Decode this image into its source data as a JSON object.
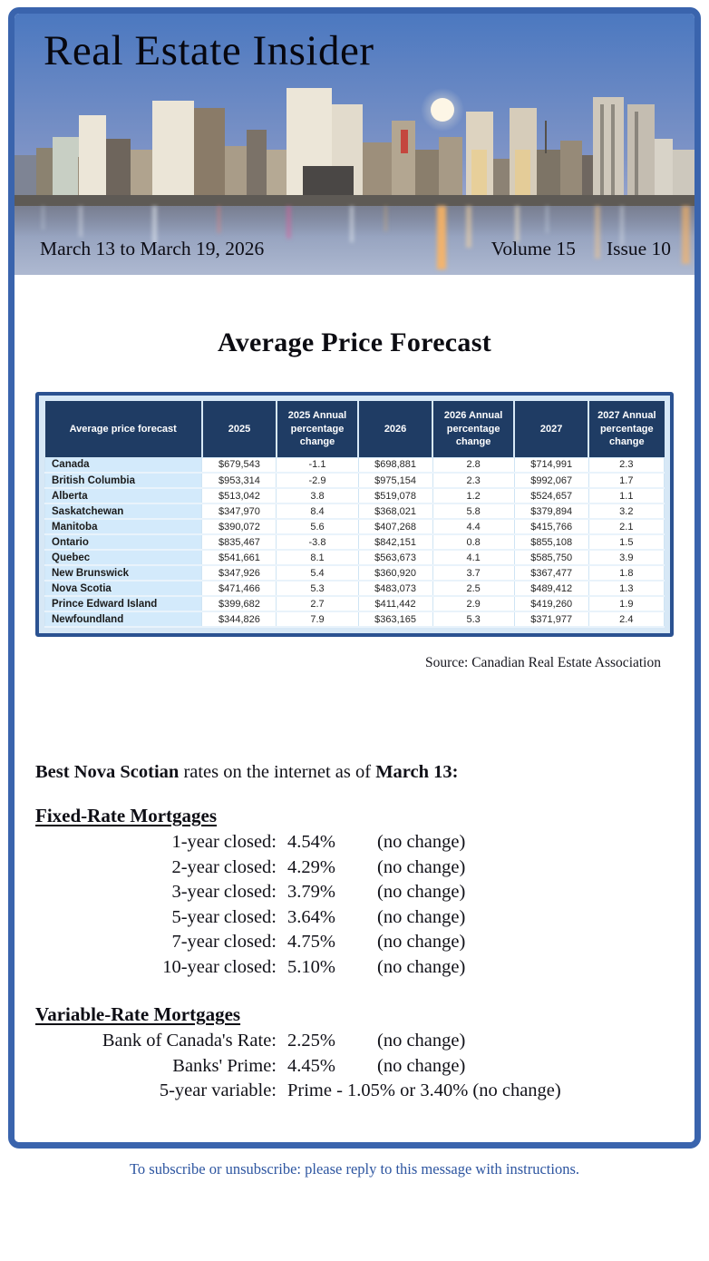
{
  "page": {
    "title": "Real Estate Insider",
    "date_range": "March 13 to March 19, 2026",
    "volume": "Volume 15",
    "issue": "Issue 10",
    "footer": "To subscribe or unsubscribe: please reply to this message with instructions."
  },
  "forecast": {
    "heading": "Average Price Forecast",
    "source": "Source: Canadian Real Estate Association",
    "table": {
      "columns": [
        "Average price forecast",
        "2025",
        "2025 Annual percentage change",
        "2026",
        "2026 Annual percentage change",
        "2027",
        "2027 Annual percentage change"
      ],
      "rows": [
        [
          "Canada",
          "$679,543",
          "-1.1",
          "$698,881",
          "2.8",
          "$714,991",
          "2.3"
        ],
        [
          "British Columbia",
          "$953,314",
          "-2.9",
          "$975,154",
          "2.3",
          "$992,067",
          "1.7"
        ],
        [
          "Alberta",
          "$513,042",
          "3.8",
          "$519,078",
          "1.2",
          "$524,657",
          "1.1"
        ],
        [
          "Saskatchewan",
          "$347,970",
          "8.4",
          "$368,021",
          "5.8",
          "$379,894",
          "3.2"
        ],
        [
          "Manitoba",
          "$390,072",
          "5.6",
          "$407,268",
          "4.4",
          "$415,766",
          "2.1"
        ],
        [
          "Ontario",
          "$835,467",
          "-3.8",
          "$842,151",
          "0.8",
          "$855,108",
          "1.5"
        ],
        [
          "Quebec",
          "$541,661",
          "8.1",
          "$563,673",
          "4.1",
          "$585,750",
          "3.9"
        ],
        [
          "New Brunswick",
          "$347,926",
          "5.4",
          "$360,920",
          "3.7",
          "$367,477",
          "1.8"
        ],
        [
          "Nova Scotia",
          "$471,466",
          "5.3",
          "$483,073",
          "2.5",
          "$489,412",
          "1.3"
        ],
        [
          "Prince Edward Island",
          "$399,682",
          "2.7",
          "$411,442",
          "2.9",
          "$419,260",
          "1.9"
        ],
        [
          "Newfoundland",
          "$344,826",
          "7.9",
          "$363,165",
          "5.3",
          "$371,977",
          "2.4"
        ]
      ]
    }
  },
  "rates": {
    "intro": {
      "bold1": "Best Nova Scotian",
      "mid": " rates on the internet as of ",
      "bold2": "March 13:"
    },
    "fixed": {
      "heading": "Fixed-Rate Mortgages",
      "rows": [
        {
          "label": "1-year closed:",
          "rate": "4.54%",
          "note": "(no change)"
        },
        {
          "label": "2-year closed:",
          "rate": "4.29%",
          "note": "(no change)"
        },
        {
          "label": "3-year closed:",
          "rate": "3.79%",
          "note": "(no change)"
        },
        {
          "label": "5-year closed:",
          "rate": "3.64%",
          "note": "(no change)"
        },
        {
          "label": "7-year closed:",
          "rate": "4.75%",
          "note": "(no change)"
        },
        {
          "label": "10-year closed:",
          "rate": "5.10%",
          "note": "(no change)"
        }
      ]
    },
    "variable": {
      "heading": "Variable-Rate Mortgages",
      "rows": [
        {
          "label": "Bank of Canada's Rate:",
          "rate": "2.25%",
          "note": "(no change)"
        },
        {
          "label": "Banks' Prime:",
          "rate": "4.45%",
          "note": "(no change)"
        },
        {
          "label": "5-year variable:",
          "rate": "Prime - 1.05% or 3.40% (no change)",
          "note": ""
        }
      ]
    }
  },
  "colors": {
    "frame_border": "#3a64ad",
    "table_border": "#2b5291",
    "table_header_bg": "#1f3c64",
    "table_label_bg": "#d3eafb",
    "footer_text": "#2d55a0"
  }
}
